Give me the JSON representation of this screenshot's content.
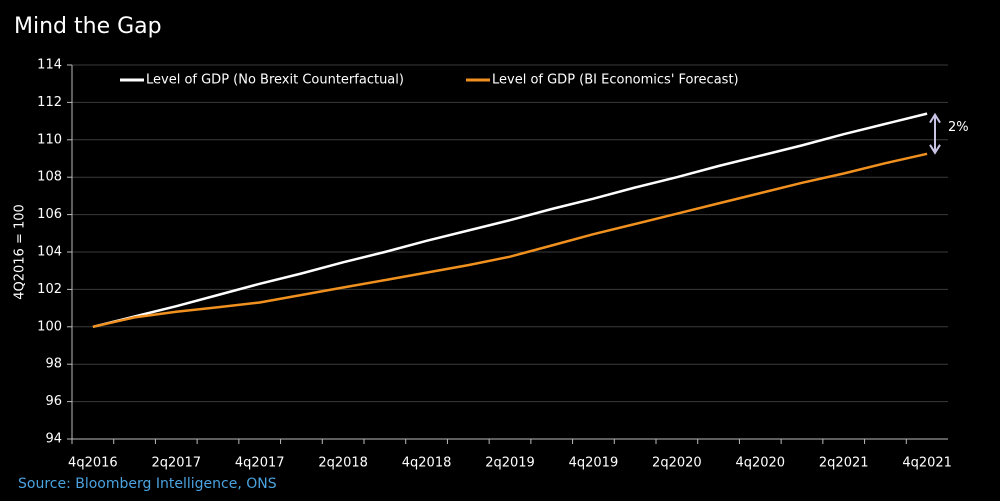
{
  "chart_data": {
    "type": "line",
    "title": "Mind the Gap",
    "y_label": "4Q2016 = 100",
    "source": "Source: Bloomberg Intelligence, ONS",
    "annotation": "2%",
    "categories": [
      "4q2016",
      null,
      "2q2017",
      null,
      "4q2017",
      null,
      "2q2018",
      null,
      "4q2018",
      null,
      "2q2019",
      null,
      "4q2019",
      null,
      "2q2020",
      null,
      "4q2020",
      null,
      "2q2021",
      null,
      "4q2021"
    ],
    "series": [
      {
        "name": "Level of GDP (No Brexit Counterfactual)",
        "color": "#ffffff",
        "values": [
          100,
          100.55,
          101.1,
          101.7,
          102.3,
          102.85,
          103.45,
          104.0,
          104.6,
          105.15,
          105.7,
          106.3,
          106.85,
          107.45,
          108.0,
          108.6,
          109.15,
          109.7,
          110.3,
          110.85,
          111.4
        ]
      },
      {
        "name": "Level of GDP (BI Economics' Forecast)",
        "color": "#f0901e",
        "values": [
          100,
          100.5,
          100.8,
          101.05,
          101.3,
          101.7,
          102.1,
          102.5,
          102.9,
          103.3,
          103.75,
          104.35,
          104.95,
          105.5,
          106.05,
          106.6,
          107.15,
          107.7,
          108.2,
          108.75,
          109.25
        ]
      }
    ],
    "ylim": [
      94,
      114
    ],
    "yticks": [
      94,
      96,
      98,
      100,
      102,
      104,
      106,
      108,
      110,
      112,
      114
    ],
    "grid": true,
    "legend": "top-left"
  }
}
